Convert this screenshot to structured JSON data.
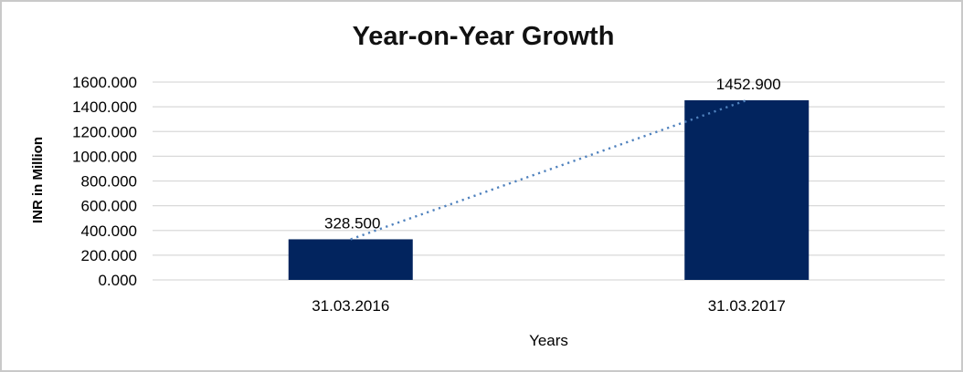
{
  "chart_data": {
    "type": "bar",
    "title": "Year-on-Year Growth",
    "xlabel": "Years",
    "ylabel": "INR in Million",
    "categories": [
      "31.03.2016",
      "31.03.2017"
    ],
    "values": [
      328.5,
      1452.9
    ],
    "data_labels": [
      "328.500",
      "1452.900"
    ],
    "ylim": [
      0,
      1600
    ],
    "y_tick_step": 200,
    "y_tick_labels": [
      "0.000",
      "200.000",
      "400.000",
      "600.000",
      "800.000",
      "1000.000",
      "1200.000",
      "1400.000",
      "1600.000"
    ],
    "grid": true,
    "legend": false,
    "trendline": true,
    "colors": {
      "bar": "#02245E",
      "trendline": "#4F81BD",
      "gridline": "#D9D9D9",
      "text": "#000000",
      "frame_border": "#C9C9C9"
    }
  }
}
